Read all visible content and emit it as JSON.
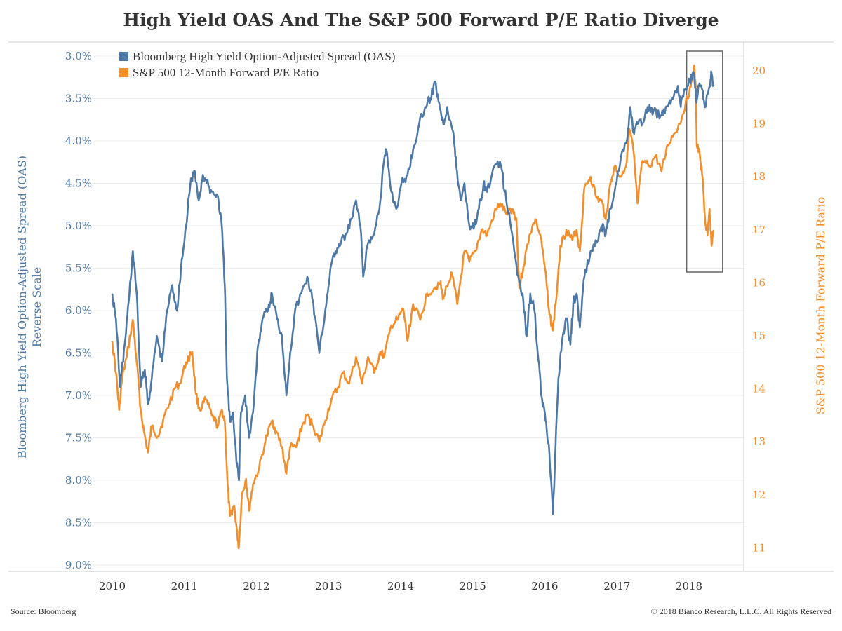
{
  "chart_data": {
    "type": "line",
    "title": "High Yield OAS And The S&P 500 Forward P/E Ratio Diverge",
    "x_ticks": [
      "2010",
      "2011",
      "2012",
      "2013",
      "2014",
      "2015",
      "2016",
      "2017",
      "2018"
    ],
    "xlim": [
      "2010-01-01",
      "2018-12-31"
    ],
    "left_axis": {
      "label": "Bloomberg High Yield Option-Adjusted Spread (OAS)",
      "sublabel": "Reverse Scale",
      "ticks": [
        "3.0%",
        "3.5%",
        "4.0%",
        "4.5%",
        "5.0%",
        "5.5%",
        "6.0%",
        "6.5%",
        "7.0%",
        "7.5%",
        "8.0%",
        "8.5%",
        "9.0%"
      ],
      "ylim": [
        3.0,
        9.0
      ],
      "reversed": true,
      "color": "#4e79a7"
    },
    "right_axis": {
      "label": "S&P 500 12-Month Forward P/E Ratio",
      "ticks": [
        "11",
        "12",
        "13",
        "14",
        "15",
        "16",
        "17",
        "18",
        "19",
        "20"
      ],
      "ylim": [
        10.7,
        20.5
      ],
      "color": "#f28e2b"
    },
    "series": [
      {
        "name": "Bloomberg High Yield Option-Adjusted Spread (OAS)",
        "axis": "left",
        "color": "#4e79a7",
        "points": [
          [
            "2010-01-01",
            5.8
          ],
          [
            "2010-01-20",
            6.1
          ],
          [
            "2010-02-10",
            6.9
          ],
          [
            "2010-03-05",
            6.4
          ],
          [
            "2010-03-25",
            5.9
          ],
          [
            "2010-04-15",
            5.3
          ],
          [
            "2010-05-05",
            5.8
          ],
          [
            "2010-05-25",
            6.9
          ],
          [
            "2010-06-15",
            6.7
          ],
          [
            "2010-07-01",
            7.1
          ],
          [
            "2010-07-20",
            6.8
          ],
          [
            "2010-08-15",
            6.3
          ],
          [
            "2010-09-10",
            6.6
          ],
          [
            "2010-10-05",
            6.0
          ],
          [
            "2010-11-01",
            5.7
          ],
          [
            "2010-11-25",
            6.0
          ],
          [
            "2010-12-15",
            5.5
          ],
          [
            "2011-01-10",
            5.0
          ],
          [
            "2011-02-01",
            4.5
          ],
          [
            "2011-02-20",
            4.35
          ],
          [
            "2011-03-15",
            4.7
          ],
          [
            "2011-04-05",
            4.4
          ],
          [
            "2011-04-25",
            4.5
          ],
          [
            "2011-05-20",
            4.6
          ],
          [
            "2011-06-20",
            4.65
          ],
          [
            "2011-07-10",
            5.0
          ],
          [
            "2011-07-25",
            5.7
          ],
          [
            "2011-08-05",
            6.8
          ],
          [
            "2011-08-20",
            7.3
          ],
          [
            "2011-09-05",
            7.2
          ],
          [
            "2011-09-20",
            7.7
          ],
          [
            "2011-10-05",
            8.0
          ],
          [
            "2011-10-15",
            7.2
          ],
          [
            "2011-11-05",
            7.0
          ],
          [
            "2011-11-25",
            7.5
          ],
          [
            "2011-12-15",
            7.2
          ],
          [
            "2012-01-10",
            6.4
          ],
          [
            "2012-02-01",
            6.1
          ],
          [
            "2012-03-01",
            6.0
          ],
          [
            "2012-03-20",
            5.8
          ],
          [
            "2012-04-15",
            6.1
          ],
          [
            "2012-05-10",
            6.3
          ],
          [
            "2012-06-01",
            7.0
          ],
          [
            "2012-06-20",
            6.5
          ],
          [
            "2012-07-15",
            6.0
          ],
          [
            "2012-08-15",
            5.8
          ],
          [
            "2012-09-15",
            5.6
          ],
          [
            "2012-10-15",
            5.9
          ],
          [
            "2012-11-15",
            6.5
          ],
          [
            "2012-12-15",
            6.0
          ],
          [
            "2013-01-10",
            5.5
          ],
          [
            "2013-02-05",
            5.3
          ],
          [
            "2013-03-05",
            5.2
          ],
          [
            "2013-04-01",
            5.1
          ],
          [
            "2013-05-01",
            4.9
          ],
          [
            "2013-05-20",
            4.7
          ],
          [
            "2013-06-15",
            5.1
          ],
          [
            "2013-06-25",
            5.6
          ],
          [
            "2013-07-20",
            5.2
          ],
          [
            "2013-08-20",
            5.1
          ],
          [
            "2013-09-20",
            4.7
          ],
          [
            "2013-10-05",
            4.3
          ],
          [
            "2013-10-20",
            4.1
          ],
          [
            "2013-11-15",
            4.6
          ],
          [
            "2013-12-10",
            4.8
          ],
          [
            "2014-01-05",
            4.5
          ],
          [
            "2014-02-05",
            4.4
          ],
          [
            "2014-03-05",
            4.1
          ],
          [
            "2014-04-05",
            3.8
          ],
          [
            "2014-05-05",
            3.6
          ],
          [
            "2014-06-01",
            3.5
          ],
          [
            "2014-06-25",
            3.3
          ],
          [
            "2014-07-15",
            3.55
          ],
          [
            "2014-08-05",
            3.8
          ],
          [
            "2014-08-25",
            3.6
          ],
          [
            "2014-09-25",
            3.9
          ],
          [
            "2014-10-10",
            4.3
          ],
          [
            "2014-11-01",
            4.7
          ],
          [
            "2014-11-20",
            4.5
          ],
          [
            "2014-12-15",
            5.0
          ],
          [
            "2015-01-10",
            5.0
          ],
          [
            "2015-02-01",
            4.8
          ],
          [
            "2015-02-25",
            4.5
          ],
          [
            "2015-03-15",
            4.6
          ],
          [
            "2015-04-20",
            4.3
          ],
          [
            "2015-05-25",
            4.3
          ],
          [
            "2015-06-20",
            4.7
          ],
          [
            "2015-07-20",
            5.1
          ],
          [
            "2015-08-20",
            5.6
          ],
          [
            "2015-09-15",
            5.9
          ],
          [
            "2015-10-01",
            6.3
          ],
          [
            "2015-10-20",
            5.8
          ],
          [
            "2015-11-10",
            6.0
          ],
          [
            "2015-12-01",
            6.6
          ],
          [
            "2015-12-15",
            7.0
          ],
          [
            "2016-01-05",
            7.3
          ],
          [
            "2016-01-25",
            7.7
          ],
          [
            "2016-02-11",
            8.4
          ],
          [
            "2016-02-25",
            7.6
          ],
          [
            "2016-03-10",
            6.8
          ],
          [
            "2016-04-01",
            6.3
          ],
          [
            "2016-04-20",
            6.1
          ],
          [
            "2016-05-10",
            6.4
          ],
          [
            "2016-05-25",
            5.9
          ],
          [
            "2016-06-10",
            5.8
          ],
          [
            "2016-06-27",
            6.2
          ],
          [
            "2016-07-20",
            5.6
          ],
          [
            "2016-08-20",
            5.3
          ],
          [
            "2016-09-20",
            5.2
          ],
          [
            "2016-10-15",
            5.0
          ],
          [
            "2016-11-05",
            5.1
          ],
          [
            "2016-11-25",
            4.8
          ],
          [
            "2016-12-20",
            4.6
          ],
          [
            "2017-01-20",
            4.2
          ],
          [
            "2017-02-20",
            4.0
          ],
          [
            "2017-03-10",
            3.6
          ],
          [
            "2017-03-25",
            3.9
          ],
          [
            "2017-04-15",
            3.8
          ],
          [
            "2017-05-10",
            3.8
          ],
          [
            "2017-06-05",
            3.6
          ],
          [
            "2017-07-05",
            3.65
          ],
          [
            "2017-08-10",
            3.7
          ],
          [
            "2017-09-05",
            3.6
          ],
          [
            "2017-10-05",
            3.5
          ],
          [
            "2017-11-05",
            3.35
          ],
          [
            "2017-11-20",
            3.6
          ],
          [
            "2017-12-10",
            3.4
          ],
          [
            "2018-01-05",
            3.3
          ],
          [
            "2018-01-25",
            3.2
          ],
          [
            "2018-02-08",
            3.55
          ],
          [
            "2018-02-20",
            3.35
          ],
          [
            "2018-03-10",
            3.4
          ],
          [
            "2018-03-25",
            3.6
          ],
          [
            "2018-04-15",
            3.35
          ],
          [
            "2018-04-25",
            3.2
          ],
          [
            "2018-05-05",
            3.35
          ]
        ]
      },
      {
        "name": "S&P 500 12-Month Forward P/E Ratio",
        "axis": "right",
        "color": "#f28e2b",
        "points": [
          [
            "2010-01-01",
            14.9
          ],
          [
            "2010-01-20",
            14.3
          ],
          [
            "2010-02-05",
            13.6
          ],
          [
            "2010-02-20",
            14.2
          ],
          [
            "2010-03-15",
            14.6
          ],
          [
            "2010-04-15",
            15.3
          ],
          [
            "2010-05-05",
            14.5
          ],
          [
            "2010-05-25",
            13.6
          ],
          [
            "2010-06-10",
            13.2
          ],
          [
            "2010-07-01",
            12.8
          ],
          [
            "2010-07-20",
            13.3
          ],
          [
            "2010-08-20",
            13.1
          ],
          [
            "2010-09-15",
            13.4
          ],
          [
            "2010-10-15",
            13.7
          ],
          [
            "2010-11-10",
            14.0
          ],
          [
            "2010-12-10",
            14.1
          ],
          [
            "2011-01-10",
            14.5
          ],
          [
            "2011-02-10",
            14.7
          ],
          [
            "2011-03-01",
            13.9
          ],
          [
            "2011-03-20",
            13.6
          ],
          [
            "2011-04-20",
            13.8
          ],
          [
            "2011-05-20",
            13.5
          ],
          [
            "2011-06-20",
            13.3
          ],
          [
            "2011-07-10",
            13.6
          ],
          [
            "2011-07-25",
            13.4
          ],
          [
            "2011-08-08",
            12.2
          ],
          [
            "2011-08-20",
            11.6
          ],
          [
            "2011-09-10",
            11.8
          ],
          [
            "2011-09-25",
            11.3
          ],
          [
            "2011-10-04",
            11.0
          ],
          [
            "2011-10-20",
            12.0
          ],
          [
            "2011-11-10",
            12.3
          ],
          [
            "2011-11-25",
            11.7
          ],
          [
            "2011-12-15",
            12.2
          ],
          [
            "2012-01-15",
            12.5
          ],
          [
            "2012-02-15",
            13.0
          ],
          [
            "2012-03-20",
            13.4
          ],
          [
            "2012-04-10",
            13.2
          ],
          [
            "2012-05-10",
            12.9
          ],
          [
            "2012-06-01",
            12.4
          ],
          [
            "2012-06-20",
            12.9
          ],
          [
            "2012-07-20",
            12.9
          ],
          [
            "2012-08-20",
            13.3
          ],
          [
            "2012-09-15",
            13.5
          ],
          [
            "2012-10-15",
            13.3
          ],
          [
            "2012-11-15",
            13.0
          ],
          [
            "2012-12-15",
            13.4
          ],
          [
            "2013-01-15",
            13.8
          ],
          [
            "2013-02-15",
            14.0
          ],
          [
            "2013-03-15",
            14.3
          ],
          [
            "2013-04-15",
            14.1
          ],
          [
            "2013-05-20",
            14.6
          ],
          [
            "2013-06-20",
            14.1
          ],
          [
            "2013-07-20",
            14.6
          ],
          [
            "2013-08-20",
            14.3
          ],
          [
            "2013-09-20",
            14.7
          ],
          [
            "2013-10-10",
            14.6
          ],
          [
            "2013-11-15",
            15.2
          ],
          [
            "2013-12-15",
            15.3
          ],
          [
            "2014-01-15",
            15.5
          ],
          [
            "2014-02-05",
            14.9
          ],
          [
            "2014-03-05",
            15.6
          ],
          [
            "2014-04-10",
            15.3
          ],
          [
            "2014-05-15",
            15.8
          ],
          [
            "2014-06-20",
            15.9
          ],
          [
            "2014-07-20",
            16.0
          ],
          [
            "2014-08-05",
            15.7
          ],
          [
            "2014-09-15",
            16.2
          ],
          [
            "2014-10-15",
            15.6
          ],
          [
            "2014-11-20",
            16.6
          ],
          [
            "2014-12-15",
            16.4
          ],
          [
            "2015-01-15",
            16.6
          ],
          [
            "2015-02-15",
            17.0
          ],
          [
            "2015-03-15",
            16.9
          ],
          [
            "2015-04-20",
            17.3
          ],
          [
            "2015-05-20",
            17.5
          ],
          [
            "2015-06-20",
            17.3
          ],
          [
            "2015-07-20",
            17.4
          ],
          [
            "2015-08-10",
            17.2
          ],
          [
            "2015-08-25",
            15.9
          ],
          [
            "2015-09-15",
            16.3
          ],
          [
            "2015-10-15",
            16.9
          ],
          [
            "2015-11-15",
            17.2
          ],
          [
            "2015-12-15",
            16.8
          ],
          [
            "2016-01-10",
            16.0
          ],
          [
            "2016-01-25",
            15.4
          ],
          [
            "2016-02-11",
            15.1
          ],
          [
            "2016-02-25",
            15.6
          ],
          [
            "2016-03-20",
            16.7
          ],
          [
            "2016-04-20",
            17.0
          ],
          [
            "2016-05-20",
            16.8
          ],
          [
            "2016-06-10",
            17.0
          ],
          [
            "2016-06-27",
            16.6
          ],
          [
            "2016-07-20",
            17.8
          ],
          [
            "2016-08-20",
            18.0
          ],
          [
            "2016-09-20",
            17.6
          ],
          [
            "2016-10-20",
            17.5
          ],
          [
            "2016-11-05",
            17.2
          ],
          [
            "2016-11-25",
            17.8
          ],
          [
            "2016-12-20",
            18.2
          ],
          [
            "2017-01-20",
            18.0
          ],
          [
            "2017-02-20",
            18.3
          ],
          [
            "2017-03-05",
            18.9
          ],
          [
            "2017-03-25",
            18.5
          ],
          [
            "2017-04-15",
            17.5
          ],
          [
            "2017-05-10",
            18.3
          ],
          [
            "2017-06-15",
            18.2
          ],
          [
            "2017-07-15",
            18.4
          ],
          [
            "2017-08-15",
            18.1
          ],
          [
            "2017-09-15",
            18.6
          ],
          [
            "2017-10-15",
            18.8
          ],
          [
            "2017-11-15",
            19.0
          ],
          [
            "2017-12-15",
            19.4
          ],
          [
            "2018-01-10",
            19.7
          ],
          [
            "2018-01-26",
            20.1
          ],
          [
            "2018-02-05",
            19.6
          ],
          [
            "2018-02-09",
            18.6
          ],
          [
            "2018-02-25",
            18.4
          ],
          [
            "2018-03-10",
            18.0
          ],
          [
            "2018-03-25",
            17.1
          ],
          [
            "2018-04-05",
            16.9
          ],
          [
            "2018-04-15",
            17.4
          ],
          [
            "2018-04-25",
            16.7
          ],
          [
            "2018-05-05",
            17.0
          ]
        ]
      }
    ],
    "legend_position": "top-left",
    "grid": true,
    "highlight_box": {
      "x_start": "2017-12-20",
      "x_end": "2018-06-20"
    }
  },
  "footer": {
    "source": "Source: Bloomberg",
    "copyright": "© 2018 Bianco Research, L.L.C. All Rights Reserved"
  }
}
